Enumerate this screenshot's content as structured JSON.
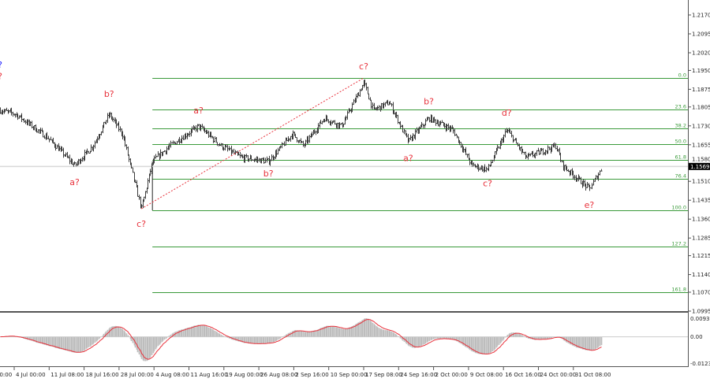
{
  "chart_data": {
    "type": "candlestick",
    "timeframe_note": "",
    "y_ticks": [
      "1.2170",
      "1.2095",
      "1.2020",
      "1.1950",
      "1.1875",
      "1.1805",
      "1.1730",
      "1.1655",
      "1.1580",
      "1.1510",
      "1.1435",
      "1.1360",
      "1.1285",
      "1.1215",
      "1.1140",
      "1.1070",
      "1.0995"
    ],
    "ylim": [
      1.0995,
      1.217
    ],
    "current_price": "1.1569",
    "x_ticks": [
      "4 Jul 00:00",
      "11 Jul 08:00",
      "18 Jul 16:00",
      "28 Jul 00:00",
      "4 Aug 08:00",
      "11 Aug 16:00",
      "19 Aug 00:00",
      "26 Aug 08:00",
      "2 Sep 16:00",
      "10 Sep 00:00",
      "17 Sep 08:00",
      "24 Sep 16:00",
      "2 Oct 00:00",
      "9 Oct 08:00",
      "16 Oct 16:00",
      "24 Oct 00:00",
      "31 Oct 08:00"
    ],
    "x_tick_first_partial": "00:00",
    "price_path": [
      {
        "t": "1 Jul 00:00",
        "p": 1.1792
      },
      {
        "t": "4 Jul 08:00",
        "p": 1.1776
      },
      {
        "t": "11 Jul 00:00",
        "p": 1.1683
      },
      {
        "t": "16 Jul 16:00",
        "p": 1.1573
      },
      {
        "t": "21 Jul 00:00",
        "p": 1.1651
      },
      {
        "t": "25 Jul 08:00",
        "p": 1.1776
      },
      {
        "t": "28 Jul 16:00",
        "p": 1.1698
      },
      {
        "t": "30 Jul 08:00",
        "p": 1.1573
      },
      {
        "t": "1 Aug 16:00",
        "p": 1.1401
      },
      {
        "t": "4 Aug 00:00",
        "p": 1.1589
      },
      {
        "t": "7 Aug 16:00",
        "p": 1.1651
      },
      {
        "t": "13 Aug 16:00",
        "p": 1.1729
      },
      {
        "t": "18 Aug 08:00",
        "p": 1.1651
      },
      {
        "t": "22 Aug 16:00",
        "p": 1.1604
      },
      {
        "t": "28 Aug 08:00",
        "p": 1.1589
      },
      {
        "t": "2 Sep 08:00",
        "p": 1.1698
      },
      {
        "t": "4 Sep 16:00",
        "p": 1.1651
      },
      {
        "t": "9 Sep 00:00",
        "p": 1.1761
      },
      {
        "t": "12 Sep 16:00",
        "p": 1.1729
      },
      {
        "t": "17 Sep 08:00",
        "p": 1.1901
      },
      {
        "t": "19 Sep 08:00",
        "p": 1.1792
      },
      {
        "t": "22 Sep 16:00",
        "p": 1.1823
      },
      {
        "t": "26 Sep 16:00",
        "p": 1.1667
      },
      {
        "t": "1 Oct 00:00",
        "p": 1.1761
      },
      {
        "t": "6 Oct 00:00",
        "p": 1.1714
      },
      {
        "t": "10 Oct 00:00",
        "p": 1.1573
      },
      {
        "t": "13 Oct 08:00",
        "p": 1.1557
      },
      {
        "t": "17 Oct 08:00",
        "p": 1.1714
      },
      {
        "t": "21 Oct 08:00",
        "p": 1.1604
      },
      {
        "t": "27 Oct 16:00",
        "p": 1.1651
      },
      {
        "t": "29 Oct 00:00",
        "p": 1.1573
      },
      {
        "t": "3 Nov 16:00",
        "p": 1.1479
      },
      {
        "t": "6 Nov 08:00",
        "p": 1.1564
      }
    ],
    "wave_labels": [
      {
        "text": "?",
        "t": "1 Jul 00:00",
        "p": 1.196,
        "color": "#1a1aff"
      },
      {
        "text": "?",
        "t": "1 Jul 00:00",
        "p": 1.1915,
        "color": "#e8323c"
      },
      {
        "text": "b?",
        "t": "25 Jul 08:00",
        "p": 1.1845,
        "color": "#e8323c"
      },
      {
        "text": "a?",
        "t": "16 Jul 16:00",
        "p": 1.1495,
        "color": "#e8323c"
      },
      {
        "text": "c?",
        "t": "1 Aug 16:00",
        "p": 1.133,
        "color": "#e8323c"
      },
      {
        "text": "a?",
        "t": "13 Aug 16:00",
        "p": 1.178,
        "color": "#e8323c"
      },
      {
        "text": "b?",
        "t": "28 Aug 08:00",
        "p": 1.153,
        "color": "#e8323c"
      },
      {
        "text": "c?",
        "t": "17 Sep 08:00",
        "p": 1.1955,
        "color": "#e8323c"
      },
      {
        "text": "b?",
        "t": "1 Oct 00:00",
        "p": 1.1815,
        "color": "#e8323c"
      },
      {
        "text": "a?",
        "t": "26 Sep 16:00",
        "p": 1.159,
        "color": "#e8323c"
      },
      {
        "text": "c?",
        "t": "13 Oct 08:00",
        "p": 1.149,
        "color": "#e8323c"
      },
      {
        "text": "d?",
        "t": "17 Oct 08:00",
        "p": 1.177,
        "color": "#e8323c"
      },
      {
        "text": "e?",
        "t": "3 Nov 16:00",
        "p": 1.1405,
        "color": "#e8323c"
      }
    ],
    "fibonacci": {
      "from": {
        "t": "4 Aug 00:00",
        "p": 1.1395
      },
      "to": {
        "t": "17 Sep 08:00",
        "p": 1.192
      },
      "levels": [
        {
          "label": "0.0",
          "ratio": 0
        },
        {
          "label": "23.6",
          "ratio": 0.236
        },
        {
          "label": "38.2",
          "ratio": 0.382
        },
        {
          "label": "50.0",
          "ratio": 0.5
        },
        {
          "label": "61.8",
          "ratio": 0.618
        },
        {
          "label": "76.4",
          "ratio": 0.764
        },
        {
          "label": "100.0",
          "ratio": 1
        },
        {
          "label": "127.2",
          "ratio": 1.272
        },
        {
          "label": "161.8",
          "ratio": 1.618
        }
      ],
      "color": "#3a9a3a"
    },
    "trendline": {
      "from": {
        "t": "1 Aug 16:00",
        "p": 1.1401
      },
      "to": {
        "t": "17 Sep 08:00",
        "p": 1.192
      },
      "color": "#e8323c",
      "style": "dashed"
    },
    "oscillator": {
      "ticks": [
        "0.00935",
        "0.00",
        "-0.01236"
      ],
      "ylim": [
        -0.01236,
        0.00935
      ],
      "histogram_color": "#bdbdbd",
      "signal_color": "#e8323c"
    },
    "colors": {
      "bars": "#3c3c3c",
      "price_line": "#d8d8d8",
      "current_price_bg": "#000000",
      "current_price_text": "#ffffff"
    }
  }
}
